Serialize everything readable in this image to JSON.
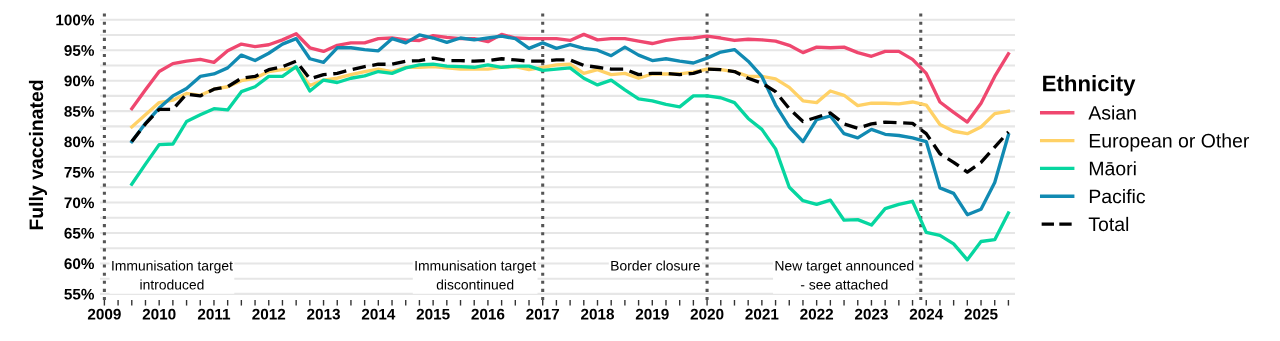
{
  "chart_data": {
    "type": "line",
    "ylabel": "Fully vaccinated",
    "legend_title": "Ethnicity",
    "legend": "right",
    "grid": "y",
    "line_style": "solid",
    "marker": "none",
    "x": [
      2009.5,
      2009.75,
      2010,
      2010.25,
      2010.5,
      2010.75,
      2011,
      2011.25,
      2011.5,
      2011.75,
      2012,
      2012.25,
      2012.5,
      2012.75,
      2013,
      2013.25,
      2013.5,
      2013.75,
      2014,
      2014.25,
      2014.5,
      2014.75,
      2015,
      2015.25,
      2015.5,
      2015.75,
      2016,
      2016.25,
      2016.5,
      2016.75,
      2017,
      2017.25,
      2017.5,
      2017.75,
      2018,
      2018.25,
      2018.5,
      2018.75,
      2019,
      2019.25,
      2019.5,
      2019.75,
      2020,
      2020.25,
      2020.5,
      2020.75,
      2021,
      2021.25,
      2021.5,
      2021.75,
      2022,
      2022.25,
      2022.5,
      2022.75,
      2023,
      2023.25,
      2023.5,
      2023.75,
      2024,
      2024.25,
      2024.5,
      2024.75,
      2025,
      2025.25,
      2025.5
    ],
    "series": [
      {
        "name": "Asian",
        "color": "#ef476f",
        "values": [
          85.4,
          88.5,
          91.5,
          92.8,
          93.2,
          93.5,
          93.0,
          94.9,
          96.0,
          95.6,
          95.9,
          96.7,
          97.7,
          95.4,
          94.8,
          95.8,
          96.2,
          96.2,
          96.9,
          97.0,
          96.7,
          96.6,
          97.4,
          97.1,
          96.9,
          96.9,
          96.4,
          97.6,
          97.0,
          96.9,
          96.9,
          96.9,
          96.6,
          97.6,
          96.7,
          96.9,
          96.9,
          96.5,
          96.1,
          96.6,
          96.9,
          97.0,
          97.3,
          97.0,
          96.6,
          96.8,
          96.7,
          96.5,
          95.8,
          94.6,
          95.5,
          95.4,
          95.5,
          94.6,
          94.0,
          94.8,
          94.8,
          93.5,
          91.2,
          86.5,
          84.8,
          83.2,
          86.3,
          90.7,
          94.4
        ]
      },
      {
        "name": "European or Other",
        "color": "#ffd166",
        "values": [
          82.4,
          84.4,
          86.4,
          86.8,
          87.9,
          87.6,
          88.6,
          89.0,
          90.0,
          90.4,
          91.5,
          91.8,
          92.1,
          89.2,
          90.1,
          90.4,
          91.0,
          91.5,
          91.9,
          91.5,
          92.2,
          92.2,
          92.3,
          92.1,
          91.9,
          91.9,
          91.9,
          92.2,
          92.3,
          91.8,
          92.2,
          92.6,
          92.7,
          91.2,
          91.8,
          91.0,
          91.2,
          90.4,
          91.1,
          91.1,
          91.1,
          91.4,
          91.9,
          91.8,
          91.5,
          90.7,
          90.7,
          90.3,
          88.9,
          86.7,
          86.4,
          88.3,
          87.6,
          85.9,
          86.3,
          86.3,
          86.2,
          86.5,
          86.0,
          82.8,
          81.7,
          81.3,
          82.4,
          84.6,
          85.0
        ]
      },
      {
        "name": "Māori",
        "color": "#06d6a0",
        "values": [
          73.0,
          76.3,
          79.5,
          79.6,
          83.3,
          84.4,
          85.4,
          85.2,
          88.2,
          89.0,
          90.7,
          90.7,
          92.3,
          88.3,
          90.1,
          89.7,
          90.4,
          90.8,
          91.5,
          91.2,
          92.1,
          92.6,
          92.7,
          92.4,
          92.3,
          92.2,
          92.6,
          92.2,
          92.4,
          92.4,
          91.7,
          91.9,
          92.1,
          90.4,
          89.3,
          90.1,
          88.5,
          87.0,
          86.7,
          86.1,
          85.7,
          87.5,
          87.5,
          87.2,
          86.4,
          83.8,
          82.0,
          78.8,
          72.5,
          70.3,
          69.7,
          70.4,
          67.1,
          67.2,
          66.3,
          69.0,
          69.7,
          70.2,
          65.1,
          64.6,
          63.2,
          60.6,
          63.6,
          63.9,
          68.3
        ]
      },
      {
        "name": "Pacific",
        "color": "#118ab2",
        "values": [
          80.0,
          83.0,
          85.5,
          87.5,
          88.7,
          90.7,
          91.1,
          92.1,
          94.2,
          93.3,
          94.5,
          96.0,
          96.9,
          93.6,
          93.0,
          95.4,
          95.4,
          95.1,
          94.9,
          96.9,
          96.2,
          97.5,
          97.0,
          96.3,
          97.0,
          96.7,
          97.0,
          97.3,
          96.9,
          95.3,
          96.2,
          95.3,
          95.9,
          95.3,
          95.0,
          94.1,
          95.5,
          94.2,
          93.3,
          93.6,
          93.2,
          92.9,
          93.7,
          94.7,
          95.1,
          93.2,
          90.7,
          86.0,
          82.4,
          80.0,
          83.6,
          84.2,
          81.3,
          80.6,
          82.0,
          81.2,
          81.0,
          80.6,
          80.0,
          72.4,
          71.5,
          68.0,
          68.9,
          73.3,
          81.1
        ]
      },
      {
        "name": "Total",
        "color": "#000000",
        "line_style": "dashed",
        "values": [
          80.0,
          82.9,
          85.3,
          85.3,
          87.8,
          87.5,
          88.6,
          89.0,
          90.4,
          90.7,
          91.8,
          92.3,
          93.2,
          90.3,
          91.0,
          91.2,
          91.8,
          92.3,
          92.7,
          92.7,
          93.2,
          93.3,
          93.7,
          93.3,
          93.3,
          93.2,
          93.3,
          93.6,
          93.4,
          93.2,
          93.2,
          93.4,
          93.4,
          92.5,
          92.2,
          91.9,
          91.9,
          91.0,
          91.2,
          91.2,
          91.0,
          91.2,
          91.9,
          91.8,
          91.5,
          90.4,
          89.6,
          88.2,
          85.4,
          83.3,
          84.0,
          84.7,
          82.9,
          82.2,
          82.9,
          83.2,
          83.1,
          83.0,
          81.3,
          78.0,
          76.6,
          75.0,
          76.6,
          79.1,
          81.6
        ]
      }
    ],
    "xlim": [
      2008.92,
      2025.62
    ],
    "xticks": [
      2009,
      {
        "value": 2009.25,
        "label": null
      },
      {
        "value": 2009.5,
        "label": null
      },
      {
        "value": 2009.75,
        "label": null
      },
      2010,
      {
        "value": 2010.25,
        "label": null
      },
      {
        "value": 2010.5,
        "label": null
      },
      {
        "value": 2010.75,
        "label": null
      },
      2011,
      {
        "value": 2011.25,
        "label": null
      },
      {
        "value": 2011.5,
        "label": null
      },
      {
        "value": 2011.75,
        "label": null
      },
      2012,
      {
        "value": 2012.25,
        "label": null
      },
      {
        "value": 2012.5,
        "label": null
      },
      {
        "value": 2012.75,
        "label": null
      },
      2013,
      {
        "value": 2013.25,
        "label": null
      },
      {
        "value": 2013.5,
        "label": null
      },
      {
        "value": 2013.75,
        "label": null
      },
      2014,
      {
        "value": 2014.25,
        "label": null
      },
      {
        "value": 2014.5,
        "label": null
      },
      {
        "value": 2014.75,
        "label": null
      },
      2015,
      {
        "value": 2015.25,
        "label": null
      },
      {
        "value": 2015.5,
        "label": null
      },
      {
        "value": 2015.75,
        "label": null
      },
      2016,
      {
        "value": 2016.25,
        "label": null
      },
      {
        "value": 2016.5,
        "label": null
      },
      {
        "value": 2016.75,
        "label": null
      },
      2017,
      {
        "value": 2017.25,
        "label": null
      },
      {
        "value": 2017.5,
        "label": null
      },
      {
        "value": 2017.75,
        "label": null
      },
      2018,
      {
        "value": 2018.25,
        "label": null
      },
      {
        "value": 2018.5,
        "label": null
      },
      {
        "value": 2018.75,
        "label": null
      },
      2019,
      {
        "value": 2019.25,
        "label": null
      },
      {
        "value": 2019.5,
        "label": null
      },
      {
        "value": 2019.75,
        "label": null
      },
      2020,
      {
        "value": 2020.25,
        "label": null
      },
      {
        "value": 2020.5,
        "label": null
      },
      {
        "value": 2020.75,
        "label": null
      },
      2021,
      {
        "value": 2021.25,
        "label": null
      },
      {
        "value": 2021.5,
        "label": null
      },
      {
        "value": 2021.75,
        "label": null
      },
      2022,
      {
        "value": 2022.25,
        "label": null
      },
      {
        "value": 2022.5,
        "label": null
      },
      {
        "value": 2022.75,
        "label": null
      },
      2023,
      {
        "value": 2023.25,
        "label": null
      },
      {
        "value": 2023.5,
        "label": null
      },
      {
        "value": 2023.75,
        "label": null
      },
      2024,
      {
        "value": 2024.25,
        "label": null
      },
      {
        "value": 2024.5,
        "label": null
      },
      {
        "value": 2024.75,
        "label": null
      },
      2025,
      {
        "value": 2025.25,
        "label": null
      },
      {
        "value": 2025.5,
        "label": null
      }
    ],
    "ylim": [
      54,
      101.6
    ],
    "yticks": [
      {
        "value": 55,
        "label": "55%"
      },
      {
        "value": 57.5,
        "label": null
      },
      {
        "value": 60,
        "label": "60%"
      },
      {
        "value": 62.5,
        "label": null
      },
      {
        "value": 65,
        "label": "65%"
      },
      {
        "value": 67.5,
        "label": null
      },
      {
        "value": 70,
        "label": "70%"
      },
      {
        "value": 72.5,
        "label": null
      },
      {
        "value": 75,
        "label": "75%"
      },
      {
        "value": 77.5,
        "label": null
      },
      {
        "value": 80,
        "label": "80%"
      },
      {
        "value": 82.5,
        "label": null
      },
      {
        "value": 85,
        "label": "85%"
      },
      {
        "value": 87.5,
        "label": null
      },
      {
        "value": 90,
        "label": "90%"
      },
      {
        "value": 92.5,
        "label": null
      },
      {
        "value": 95,
        "label": "95%"
      },
      {
        "value": 97.5,
        "label": null
      },
      {
        "value": 100,
        "label": "100%"
      }
    ],
    "ref_lines": [
      {
        "axis": "x",
        "value": 2009,
        "label": "Immunisation target\nintroduced",
        "color": "#555555",
        "line_style": "dotted"
      },
      {
        "axis": "x",
        "value": 2017,
        "label": "Immunisation target\ndiscontinued",
        "color": "#555555",
        "line_style": "dotted"
      },
      {
        "axis": "x",
        "value": 2020,
        "label": "Border closure",
        "color": "#555555",
        "line_style": "dotted"
      },
      {
        "axis": "x",
        "value": 2023.9,
        "label": "New target announced\n- see attached",
        "color": "#555555",
        "line_style": "dotted"
      }
    ]
  }
}
